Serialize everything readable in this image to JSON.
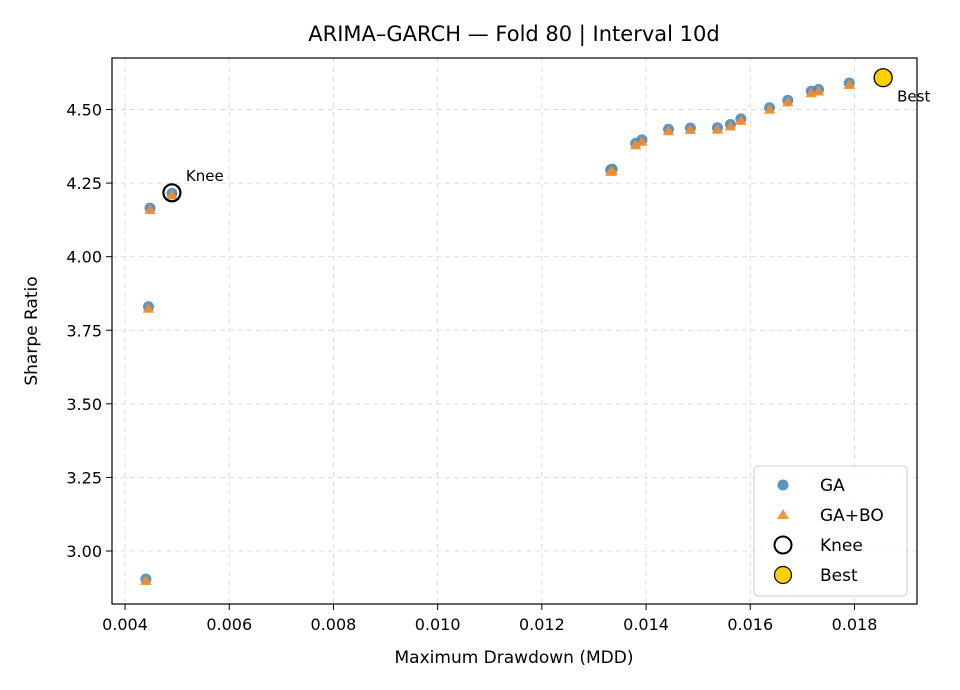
{
  "chart_data": {
    "type": "scatter",
    "title": "ARIMA–GARCH — Fold 80 | Interval 10d",
    "xlabel": "Maximum Drawdown (MDD)",
    "ylabel": "Sharpe Ratio",
    "xlim": [
      0.00375,
      0.0192
    ],
    "ylim": [
      2.82,
      4.675
    ],
    "xticks": [
      "0.004",
      "0.006",
      "0.008",
      "0.010",
      "0.012",
      "0.014",
      "0.016",
      "0.018"
    ],
    "xtick_values": [
      0.004,
      0.006,
      0.008,
      0.01,
      0.012,
      0.014,
      0.016,
      0.018
    ],
    "yticks": [
      "3.00",
      "3.25",
      "3.50",
      "3.75",
      "4.00",
      "4.25",
      "4.50"
    ],
    "ytick_values": [
      3.0,
      3.25,
      3.5,
      3.75,
      4.0,
      4.25,
      4.5
    ],
    "grid": true,
    "legend_position": "bottom-right",
    "series": [
      {
        "name": "GA",
        "marker": "circle",
        "color": "#4a8abf",
        "points": [
          [
            0.0044,
            2.905
          ],
          [
            0.00445,
            3.83
          ],
          [
            0.00448,
            4.165
          ],
          [
            0.0049,
            4.215
          ],
          [
            0.01332,
            4.295
          ],
          [
            0.01335,
            4.297
          ],
          [
            0.0138,
            4.385
          ],
          [
            0.01392,
            4.397
          ],
          [
            0.01443,
            4.433
          ],
          [
            0.01485,
            4.437
          ],
          [
            0.01537,
            4.438
          ],
          [
            0.01562,
            4.449
          ],
          [
            0.01582,
            4.468
          ],
          [
            0.01637,
            4.506
          ],
          [
            0.01672,
            4.531
          ],
          [
            0.01717,
            4.562
          ],
          [
            0.01731,
            4.568
          ],
          [
            0.0179,
            4.59
          ]
        ]
      },
      {
        "name": "GA+BO",
        "marker": "triangle",
        "color": "#f28e2b",
        "points": [
          [
            0.0044,
            2.9
          ],
          [
            0.00445,
            3.825
          ],
          [
            0.00448,
            4.16
          ],
          [
            0.0049,
            4.21
          ],
          [
            0.01332,
            4.29
          ],
          [
            0.01335,
            4.292
          ],
          [
            0.0138,
            4.38
          ],
          [
            0.01392,
            4.392
          ],
          [
            0.01443,
            4.428
          ],
          [
            0.01485,
            4.432
          ],
          [
            0.01537,
            4.433
          ],
          [
            0.01562,
            4.444
          ],
          [
            0.01582,
            4.463
          ],
          [
            0.01637,
            4.501
          ],
          [
            0.01672,
            4.526
          ],
          [
            0.01717,
            4.557
          ],
          [
            0.01731,
            4.563
          ],
          [
            0.0179,
            4.585
          ]
        ]
      }
    ],
    "knee": {
      "name": "Knee",
      "label": "Knee",
      "x": 0.0049,
      "y": 4.217,
      "color": "#000000"
    },
    "best": {
      "name": "Best",
      "label": "Best",
      "x": 0.01855,
      "y": 4.608,
      "color": "#ffd000"
    }
  }
}
